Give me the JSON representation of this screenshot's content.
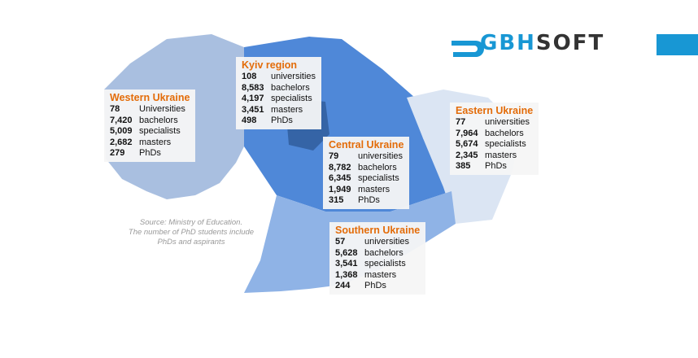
{
  "logo": {
    "part1": "GBH",
    "part2": "SOFT"
  },
  "source_note": [
    "Source: Ministry of Education.",
    "The number of PhD students include",
    "PhDs and aspirants"
  ],
  "regions": [
    {
      "name": "Western Ukraine",
      "rows": [
        {
          "value": "78",
          "label": "Universities"
        },
        {
          "value": "7,420",
          "label": "bachelors"
        },
        {
          "value": "5,009",
          "label": "specialists"
        },
        {
          "value": "2,682",
          "label": "masters"
        },
        {
          "value": "279",
          "label": "PhDs"
        }
      ]
    },
    {
      "name": "Kyiv region",
      "rows": [
        {
          "value": "108",
          "label": "universities"
        },
        {
          "value": "8,583",
          "label": "bachelors"
        },
        {
          "value": "4,197",
          "label": "specialists"
        },
        {
          "value": "3,451",
          "label": "masters"
        },
        {
          "value": "498",
          "label": "PhDs"
        }
      ]
    },
    {
      "name": "Central Ukraine",
      "rows": [
        {
          "value": "79",
          "label": "universities"
        },
        {
          "value": "8,782",
          "label": "bachelors"
        },
        {
          "value": "6,345",
          "label": "specialists"
        },
        {
          "value": "1,949",
          "label": "masters"
        },
        {
          "value": "315",
          "label": "PhDs"
        }
      ]
    },
    {
      "name": "Eastern Ukraine",
      "rows": [
        {
          "value": "77",
          "label": "universities"
        },
        {
          "value": "7,964",
          "label": "bachelors"
        },
        {
          "value": "5,674",
          "label": "specialists"
        },
        {
          "value": "2,345",
          "label": "masters"
        },
        {
          "value": "385",
          "label": "PhDs"
        }
      ]
    },
    {
      "name": "Southern Ukraine",
      "rows": [
        {
          "value": "57",
          "label": "universities"
        },
        {
          "value": "5,628",
          "label": "bachelors"
        },
        {
          "value": "3,541",
          "label": "specialists"
        },
        {
          "value": "1,368",
          "label": "masters"
        },
        {
          "value": "244",
          "label": "PhDs"
        }
      ]
    }
  ]
}
